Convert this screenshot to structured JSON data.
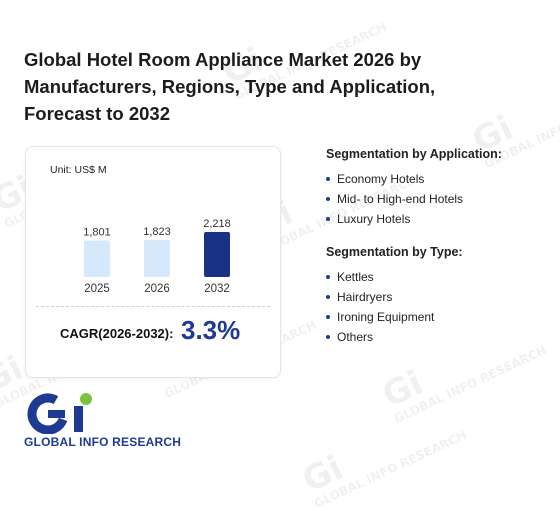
{
  "title": "Global Hotel Room Appliance Market 2026 by Manufacturers, Regions, Type and Application, Forecast to 2032",
  "watermark_text": "GLOBAL INFO RESEARCH",
  "watermark_mark": "Gi",
  "chart_data": {
    "type": "bar",
    "unit_label": "Unit: US$ M",
    "categories": [
      "2025",
      "2026",
      "2032"
    ],
    "values": [
      1801,
      1823,
      2218
    ],
    "value_labels": [
      "1,801",
      "1,823",
      "2,218"
    ],
    "colors": [
      "#d6e8fb",
      "#d6e8fb",
      "#1a3286"
    ],
    "title": "",
    "xlabel": "",
    "ylabel": ""
  },
  "cagr": {
    "label": "CAGR(2026-2032):",
    "value": "3.3%"
  },
  "segmentation": {
    "application": {
      "heading": "Segmentation by Application:",
      "items": [
        "Economy Hotels",
        "Mid- to High-end Hotels",
        "Luxury Hotels"
      ]
    },
    "type": {
      "heading": "Segmentation by Type:",
      "items": [
        "Kettles",
        "Hairdryers",
        "Ironing Equipment",
        "Others"
      ]
    }
  },
  "logo": {
    "text": "GLOBAL INFO RESEARCH",
    "colors": {
      "blue": "#1f3a93",
      "green": "#7cc242"
    }
  }
}
